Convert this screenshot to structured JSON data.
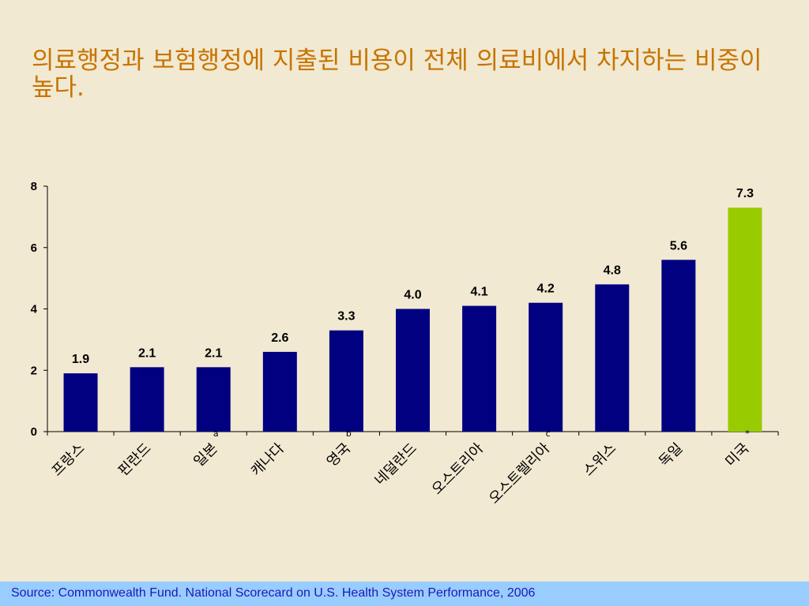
{
  "page": {
    "title": "의료행정과 보험행정에 지출된 비용이 전체 의료비에서 차지하는 비중이 높다.",
    "source": "Source: Commonwealth Fund. National Scorecard on U.S. Health System Performance, 2006"
  },
  "colors": {
    "background": "#f1e9d2",
    "title": "#c77400",
    "bar": "#000080",
    "highlight_bar": "#99cc00",
    "footer_bg": "#99ccff",
    "footer_text": "#1a1ab5"
  },
  "chart_data": {
    "type": "bar",
    "title": "",
    "xlabel": "",
    "ylabel": "",
    "ylim": [
      0,
      8
    ],
    "yticks": [
      0,
      2,
      4,
      6,
      8
    ],
    "grid": false,
    "legend": "none",
    "categories": [
      "프랑스",
      "핀란드",
      "일본",
      "캐나다",
      "영국",
      "네덜란드",
      "오스트리아",
      "오스트렐리아",
      "스위스",
      "독일",
      "미국"
    ],
    "values": [
      1.9,
      2.1,
      2.1,
      2.6,
      3.3,
      4.0,
      4.1,
      4.2,
      4.8,
      5.6,
      7.3
    ],
    "data_labels": [
      "1.9",
      "2.1",
      "2.1",
      "2.6",
      "3.3",
      "4.0",
      "4.1",
      "4.2",
      "4.8",
      "5.6",
      "7.3"
    ],
    "highlight_index": 10,
    "annotations": [
      {
        "category": "일본",
        "text": "a"
      },
      {
        "category": "영국",
        "text": "b"
      },
      {
        "category": "오스트렐리아",
        "text": "c"
      },
      {
        "category": "미국",
        "text": "*"
      }
    ]
  }
}
